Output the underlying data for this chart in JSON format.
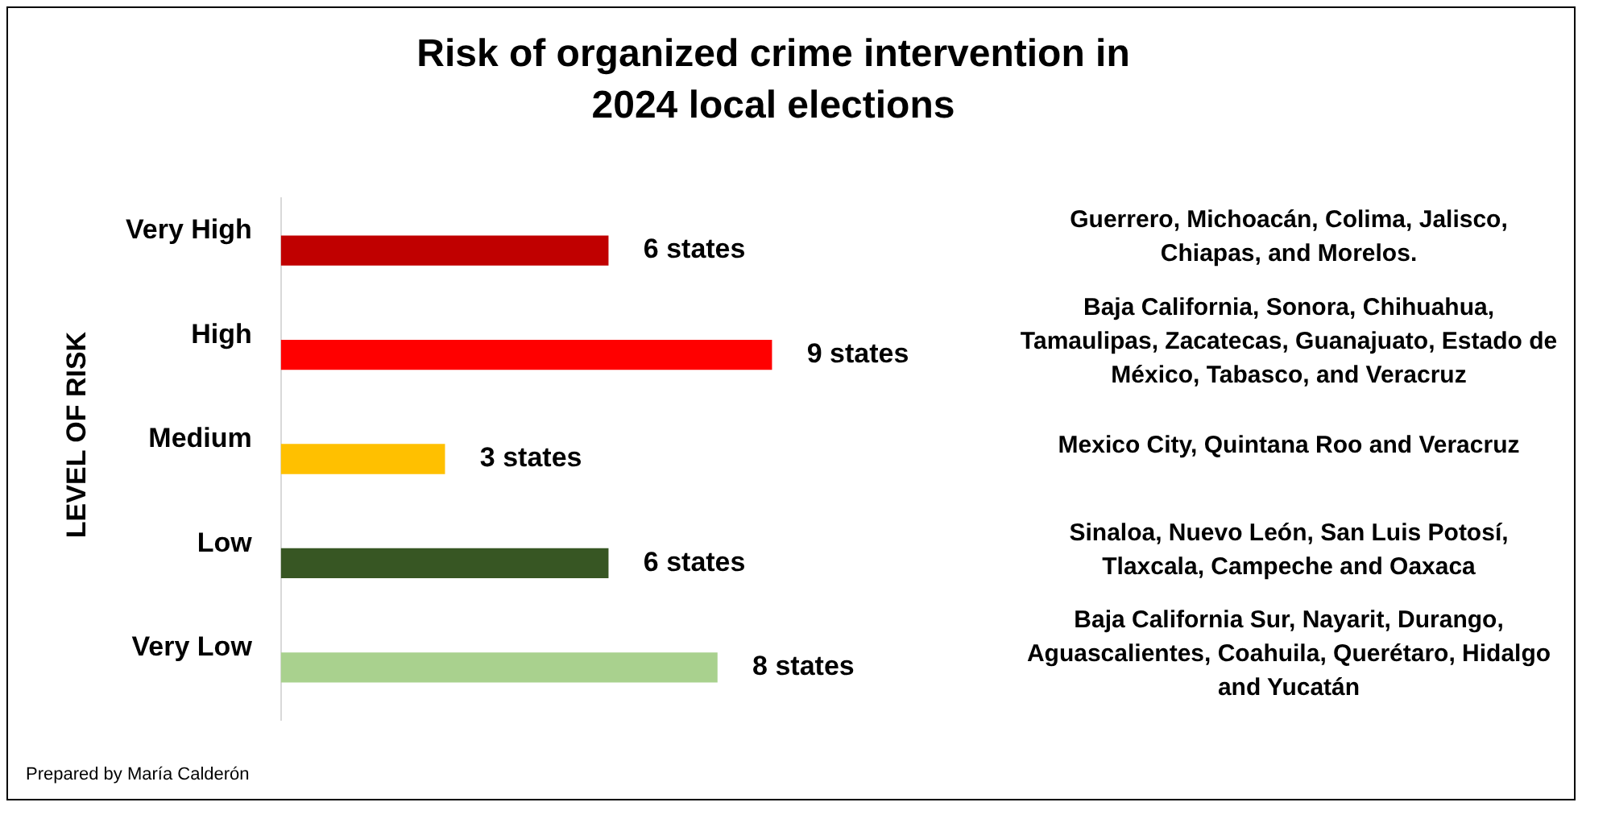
{
  "chart_data": {
    "type": "bar",
    "orientation": "horizontal",
    "title": "Risk of organized crime intervention in 2024 local elections",
    "ylabel": "LEVEL OF RISK",
    "categories": [
      "Very High",
      "High",
      "Medium",
      "Low",
      "Very Low"
    ],
    "values": [
      6,
      9,
      3,
      6,
      8
    ],
    "colors": [
      "#c00000",
      "#ff0000",
      "#ffc000",
      "#375623",
      "#a9d18e"
    ],
    "value_labels": [
      "6 states",
      "9 states",
      "3 states",
      "6 states",
      "8 states"
    ],
    "grid": false,
    "legend": false,
    "annotations": [
      "Guerrero, Michoacán, Colima, Jalisco, Chiapas, and Morelos.",
      "Baja California, Sonora, Chihuahua, Tamaulipas, Zacatecas, Guanajuato, Estado de México, Tabasco, and Veracruz",
      "Mexico City, Quintana Roo and Veracruz",
      "Sinaloa, Nuevo León, San Luis Potosí, Tlaxcala, Campeche and Oaxaca",
      "Baja California Sur, Nayarit, Durango, Aguascalientes, Coahuila, Querétaro, Hidalgo and Yucatán",
      "Prepared by María Calderón"
    ]
  }
}
